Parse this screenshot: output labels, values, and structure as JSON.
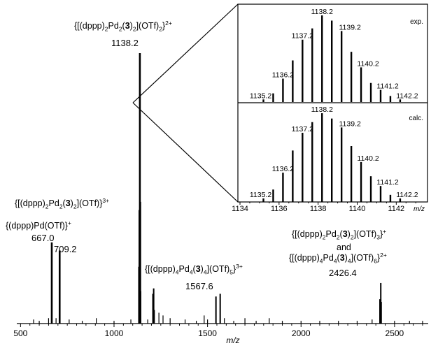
{
  "chart_data": [
    {
      "type": "line",
      "name": "main-mass-spectrum",
      "xlabel": "m/z",
      "ylabel": "",
      "xlim": [
        480,
        2680
      ],
      "ylim": [
        0,
        100
      ],
      "grid": false,
      "xticks": [
        500,
        1000,
        1500,
        2000,
        2500
      ],
      "xtick_labels": [
        "500",
        "1000",
        "1500",
        "2000",
        "2500"
      ],
      "peaks": [
        {
          "x": 570,
          "y": 1.5
        },
        {
          "x": 600,
          "y": 1
        },
        {
          "x": 650,
          "y": 2
        },
        {
          "x": 667.0,
          "y": 30
        },
        {
          "x": 690,
          "y": 2
        },
        {
          "x": 709.2,
          "y": 27
        },
        {
          "x": 760,
          "y": 1.5
        },
        {
          "x": 830,
          "y": 1
        },
        {
          "x": 905,
          "y": 2
        },
        {
          "x": 1000,
          "y": 1
        },
        {
          "x": 1090,
          "y": 1.5
        },
        {
          "x": 1134,
          "y": 21
        },
        {
          "x": 1136,
          "y": 42
        },
        {
          "x": 1138.2,
          "y": 100
        },
        {
          "x": 1140,
          "y": 45
        },
        {
          "x": 1142,
          "y": 12
        },
        {
          "x": 1180,
          "y": 1.5
        },
        {
          "x": 1208,
          "y": 11
        },
        {
          "x": 1212,
          "y": 13
        },
        {
          "x": 1216,
          "y": 5
        },
        {
          "x": 1240,
          "y": 4
        },
        {
          "x": 1262,
          "y": 3
        },
        {
          "x": 1300,
          "y": 2
        },
        {
          "x": 1380,
          "y": 1.5
        },
        {
          "x": 1440,
          "y": 1
        },
        {
          "x": 1482,
          "y": 3
        },
        {
          "x": 1500,
          "y": 1.5
        },
        {
          "x": 1545,
          "y": 10
        },
        {
          "x": 1567.6,
          "y": 11
        },
        {
          "x": 1590,
          "y": 2
        },
        {
          "x": 1640,
          "y": 1
        },
        {
          "x": 1700,
          "y": 2
        },
        {
          "x": 1760,
          "y": 1
        },
        {
          "x": 1830,
          "y": 2
        },
        {
          "x": 1900,
          "y": 1
        },
        {
          "x": 2000,
          "y": 1
        },
        {
          "x": 2100,
          "y": 1
        },
        {
          "x": 2200,
          "y": 1
        },
        {
          "x": 2300,
          "y": 1
        },
        {
          "x": 2380,
          "y": 1.5
        },
        {
          "x": 2422,
          "y": 9
        },
        {
          "x": 2426.4,
          "y": 15
        },
        {
          "x": 2430,
          "y": 8
        },
        {
          "x": 2500,
          "y": 1
        },
        {
          "x": 2580,
          "y": 1
        },
        {
          "x": 2650,
          "y": 1
        }
      ],
      "peak_labels": [
        {
          "x": 1138.2,
          "text": "1138.2"
        },
        {
          "x": 667.0,
          "text": "667.0"
        },
        {
          "x": 709.2,
          "text": "709.2"
        },
        {
          "x": 1567.6,
          "text": "1567.6"
        },
        {
          "x": 2426.4,
          "text": "2426.4"
        }
      ],
      "annotations": [
        {
          "id": "a1",
          "formula": "{[(dppp)2Pd2(3)2](OTf)2}2+"
        },
        {
          "id": "a2",
          "formula": "{[(dppp)2Pd2(3)2](OTf)}3+"
        },
        {
          "id": "a3",
          "formula": "{(dppp)Pd(OTf)}+"
        },
        {
          "id": "a4",
          "formula": "{[(dppp)4Pd4(3)4](OTf)5}3+"
        },
        {
          "id": "a5",
          "formula": "{[(dppp)2Pd2(3)2](OTf)3}+"
        },
        {
          "id": "a6",
          "connector": "and"
        },
        {
          "id": "a7",
          "formula": "{[(dppp)4Pd4(3)4](OTf)6}2+"
        }
      ]
    },
    {
      "type": "line",
      "name": "inset-isotope-pattern",
      "xlabel": "m/z",
      "xlim": [
        1134,
        1143.6
      ],
      "ylim": [
        0,
        100
      ],
      "xticks": [
        1134,
        1136,
        1138,
        1140,
        1142
      ],
      "xtick_labels": [
        "1134",
        "1136",
        "1138",
        "1140",
        "1142"
      ],
      "panels": [
        {
          "id": "exp",
          "tag": "exp.",
          "peaks": [
            {
              "x": 1135.2,
              "y": 3
            },
            {
              "x": 1135.7,
              "y": 10
            },
            {
              "x": 1136.2,
              "y": 27
            },
            {
              "x": 1136.7,
              "y": 48
            },
            {
              "x": 1137.2,
              "y": 72
            },
            {
              "x": 1137.7,
              "y": 85
            },
            {
              "x": 1138.2,
              "y": 100
            },
            {
              "x": 1138.7,
              "y": 94
            },
            {
              "x": 1139.2,
              "y": 82
            },
            {
              "x": 1139.7,
              "y": 58
            },
            {
              "x": 1140.2,
              "y": 40
            },
            {
              "x": 1140.7,
              "y": 22
            },
            {
              "x": 1141.2,
              "y": 14
            },
            {
              "x": 1141.7,
              "y": 7
            },
            {
              "x": 1142.2,
              "y": 3
            }
          ],
          "labels": [
            {
              "x": 1138.2,
              "text": "1138.2"
            },
            {
              "x": 1137.2,
              "text": "1137.2"
            },
            {
              "x": 1139.2,
              "text": "1139.2"
            },
            {
              "x": 1136.2,
              "text": "1136.2"
            },
            {
              "x": 1140.2,
              "text": "1140.2"
            },
            {
              "x": 1141.2,
              "text": "1141.2"
            },
            {
              "x": 1135.2,
              "text": "1135.2"
            },
            {
              "x": 1142.2,
              "text": "1142.2"
            }
          ]
        },
        {
          "id": "calc",
          "tag": "calc.",
          "peaks": [
            {
              "x": 1135.2,
              "y": 4
            },
            {
              "x": 1135.7,
              "y": 14
            },
            {
              "x": 1136.2,
              "y": 33
            },
            {
              "x": 1136.7,
              "y": 58
            },
            {
              "x": 1137.2,
              "y": 78
            },
            {
              "x": 1137.7,
              "y": 90
            },
            {
              "x": 1138.2,
              "y": 100
            },
            {
              "x": 1138.7,
              "y": 94
            },
            {
              "x": 1139.2,
              "y": 84
            },
            {
              "x": 1139.7,
              "y": 63
            },
            {
              "x": 1140.2,
              "y": 45
            },
            {
              "x": 1140.7,
              "y": 29
            },
            {
              "x": 1141.2,
              "y": 18
            },
            {
              "x": 1141.7,
              "y": 8
            },
            {
              "x": 1142.2,
              "y": 4
            }
          ],
          "labels": [
            {
              "x": 1138.2,
              "text": "1138.2"
            },
            {
              "x": 1137.2,
              "text": "1137.2"
            },
            {
              "x": 1139.2,
              "text": "1139.2"
            },
            {
              "x": 1136.2,
              "text": "1136.2"
            },
            {
              "x": 1140.2,
              "text": "1140.2"
            },
            {
              "x": 1141.2,
              "text": "1141.2"
            },
            {
              "x": 1135.2,
              "text": "1135.2"
            },
            {
              "x": 1142.2,
              "text": "1142.2"
            }
          ]
        }
      ]
    }
  ]
}
